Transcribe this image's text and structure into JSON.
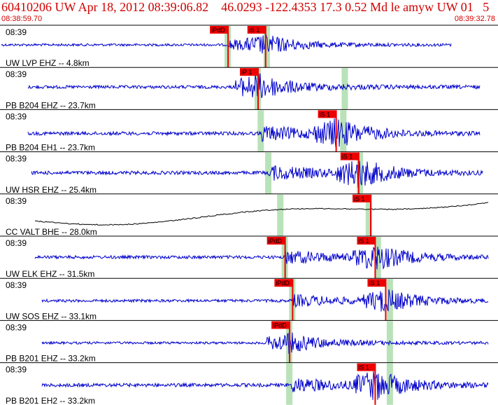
{
  "header": {
    "title": "60410206 UW Apr 18, 2012 08:39:06.82    46.0293 -122.4353 17.3 0.52 Md le amyw UW 01   5",
    "start_time": "08:38:59.70",
    "end_time": "08:39:32.78"
  },
  "colors": {
    "header_text": "#d00000",
    "trace_blue": "#0000cc",
    "trace_black": "#000000",
    "pick_red": "#ee0000",
    "pick_window_green": "#b9e2b9",
    "separator": "#000000"
  },
  "panels": [
    {
      "station": "UW LVP EHZ -- 4.8km",
      "time_label": "08:39",
      "color": "blue",
      "amplitude": 0.7,
      "picks": [
        {
          "label": "iPdD",
          "sec": 15.1
        },
        {
          "label": "iS 1",
          "sec": 17.6
        }
      ],
      "windows": [
        15.1,
        17.7
      ]
    },
    {
      "station": "PB B204 EHZ -- 23.7km",
      "time_label": "08:39",
      "color": "blue",
      "amplitude": 0.9,
      "picks": [
        {
          "label": "iP 1",
          "sec": 17.1
        }
      ],
      "windows": [
        17.1,
        22.9
      ]
    },
    {
      "station": "PB B204 EH1 -- 23.7km",
      "time_label": "08:39",
      "color": "blue",
      "amplitude": 1.0,
      "picks": [
        {
          "label": "iS 1",
          "sec": 22.3
        }
      ],
      "windows": [
        17.3,
        22.8
      ]
    },
    {
      "station": "UW HSR EHZ -- 25.4km",
      "time_label": "08:39",
      "color": "blue",
      "amplitude": 1.0,
      "picks": [
        {
          "label": "iS 1",
          "sec": 23.8
        }
      ],
      "windows": [
        17.8,
        23.9
      ]
    },
    {
      "station": "CC VALT BHE -- 28.0km",
      "time_label": "08:39",
      "color": "black",
      "amplitude": 0.6,
      "picks": [
        {
          "label": "iS 1",
          "sec": 24.6
        }
      ],
      "windows": [
        18.6,
        24.5
      ]
    },
    {
      "station": "UW ELK EHZ -- 31.5km",
      "time_label": "08:39",
      "color": "blue",
      "amplitude": 0.9,
      "picks": [
        {
          "label": "iPdD",
          "sec": 18.9
        },
        {
          "label": "iS 1",
          "sec": 24.9
        }
      ],
      "windows": [
        18.9,
        25.1
      ]
    },
    {
      "station": "UW SOS EHZ -- 33.1km",
      "time_label": "08:39",
      "color": "blue",
      "amplitude": 0.8,
      "picks": [
        {
          "label": "iPdD",
          "sec": 19.4
        },
        {
          "label": "iS 1",
          "sec": 25.6
        }
      ],
      "windows": [
        19.4,
        25.9
      ]
    },
    {
      "station": "PB B201 EHZ -- 33.2km",
      "time_label": "08:39",
      "color": "blue",
      "amplitude": 0.7,
      "picks": [
        {
          "label": "iPdD",
          "sec": 19.2
        }
      ],
      "windows": [
        19.2,
        25.9
      ]
    },
    {
      "station": "PB B201 EH2 -- 33.2km",
      "time_label": "08:39",
      "color": "blue",
      "amplitude": 1.0,
      "picks": [
        {
          "label": "iS 1",
          "sec": 24.9
        }
      ],
      "windows": [
        19.2,
        25.9
      ]
    }
  ]
}
